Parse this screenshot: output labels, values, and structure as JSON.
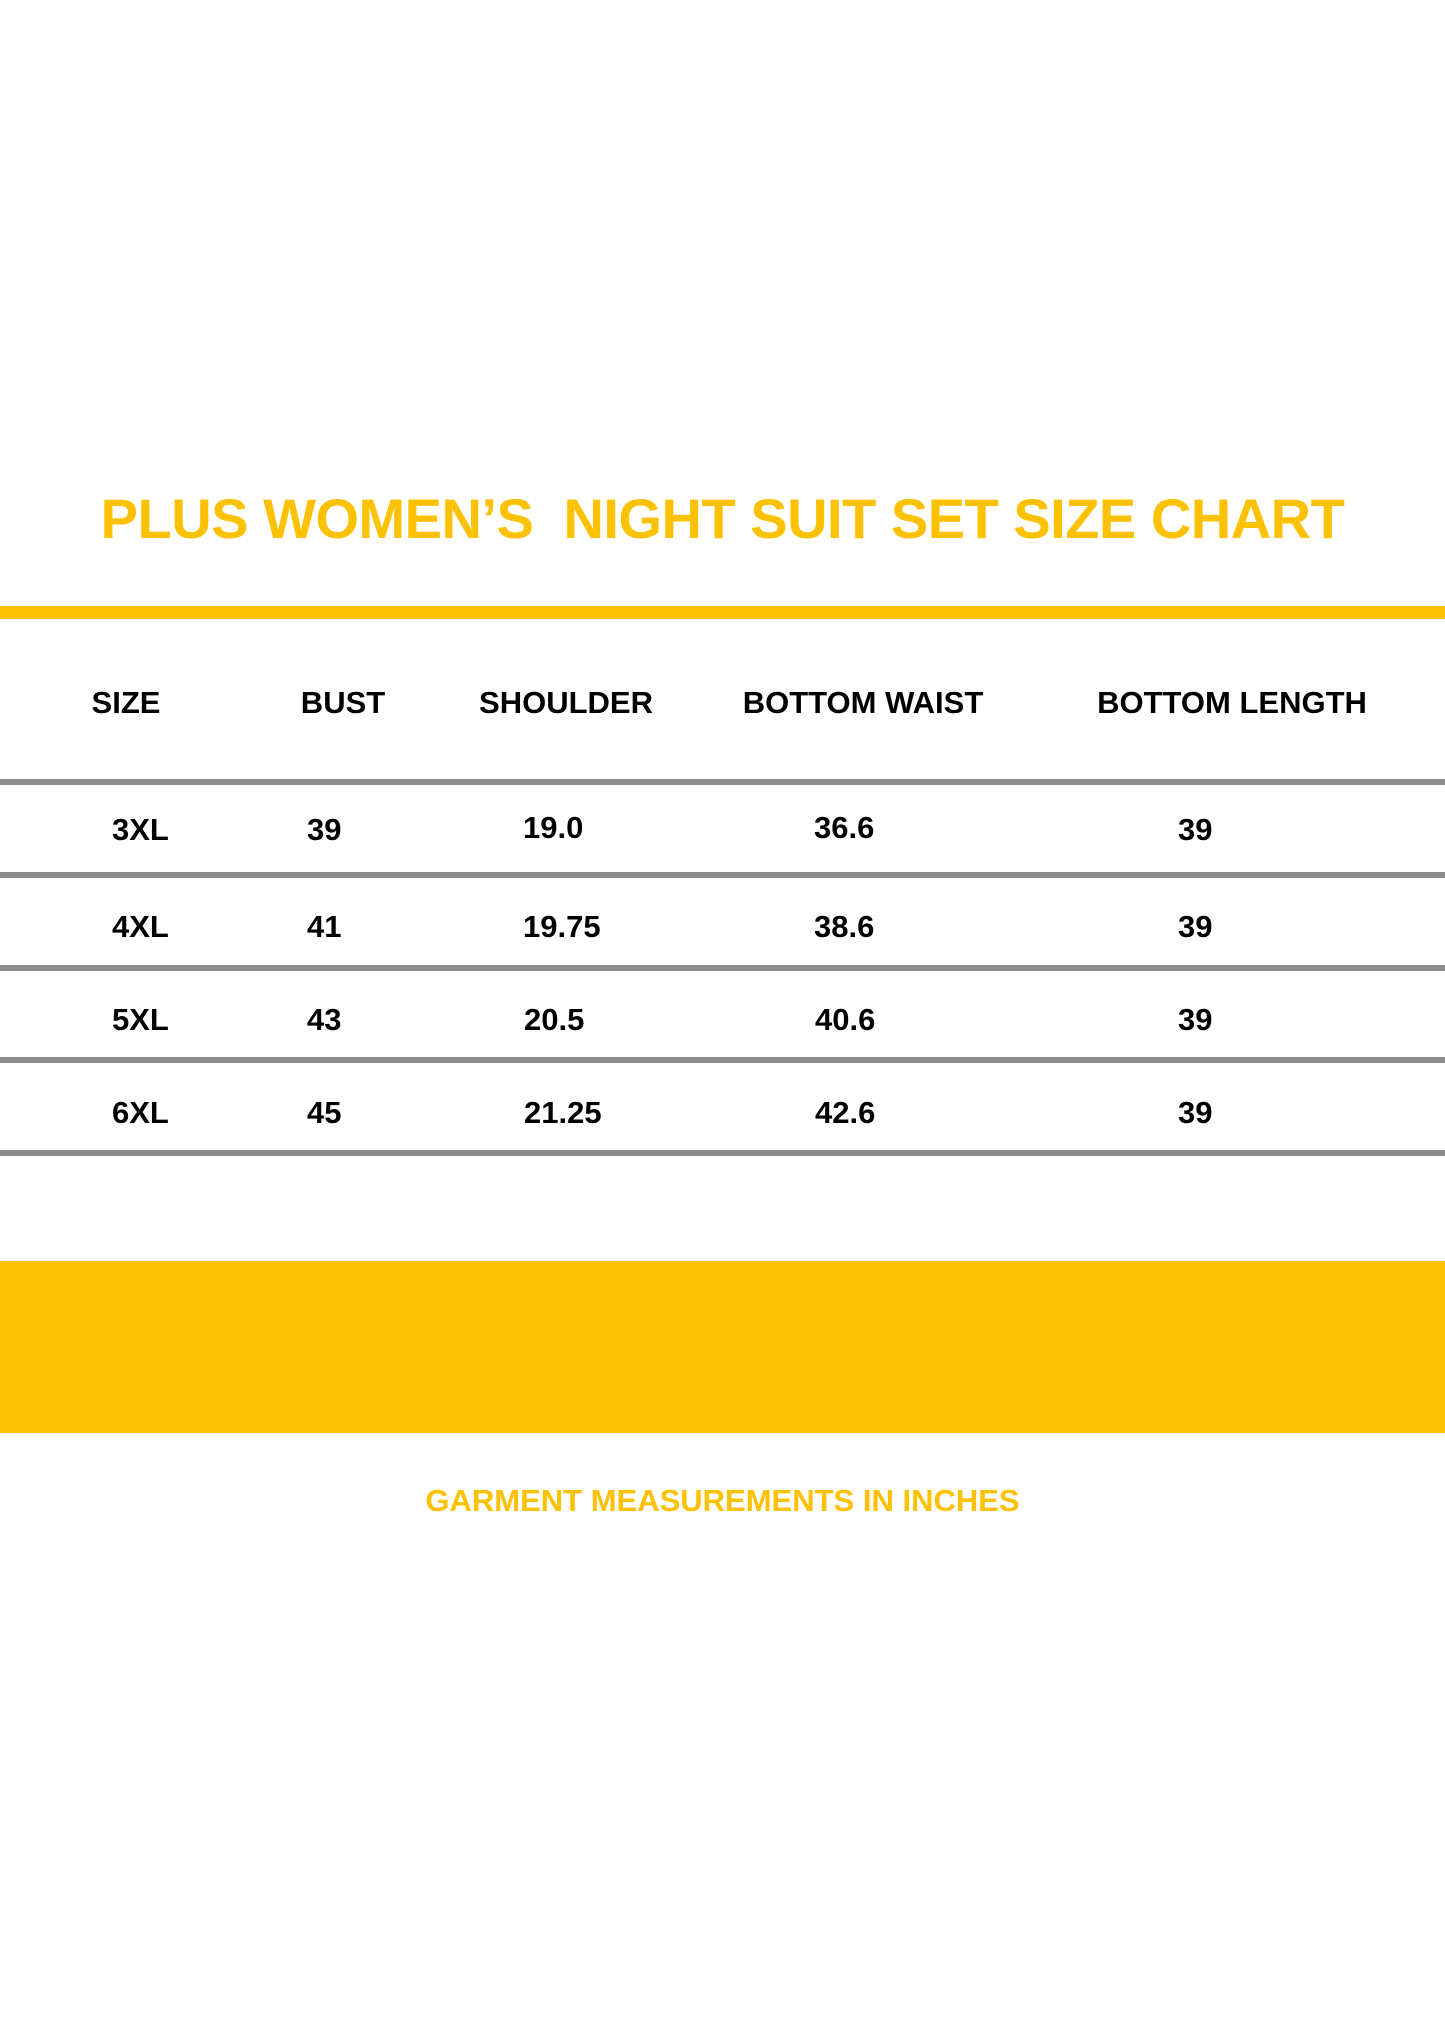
{
  "title": "PLUS WOMEN’S  NIGHT SUIT SET SIZE CHART",
  "columns": [
    "SIZE",
    "BUST",
    "SHOULDER",
    "BOTTOM WAIST",
    "BOTTOM LENGTH"
  ],
  "rows": [
    [
      "3XL",
      "39",
      "19.0",
      "36.6",
      "39"
    ],
    [
      "4XL",
      "41",
      "19.75",
      "38.6",
      "39"
    ],
    [
      "5XL",
      "43",
      "20.5",
      "40.6",
      "39"
    ],
    [
      "6XL",
      "45",
      "21.25",
      "42.6",
      "39"
    ]
  ],
  "footer": "GARMENT MEASUREMENTS IN INCHES",
  "colors": {
    "accent": "#FCC100",
    "rule": "#8c8c8c",
    "text": "#000000"
  }
}
